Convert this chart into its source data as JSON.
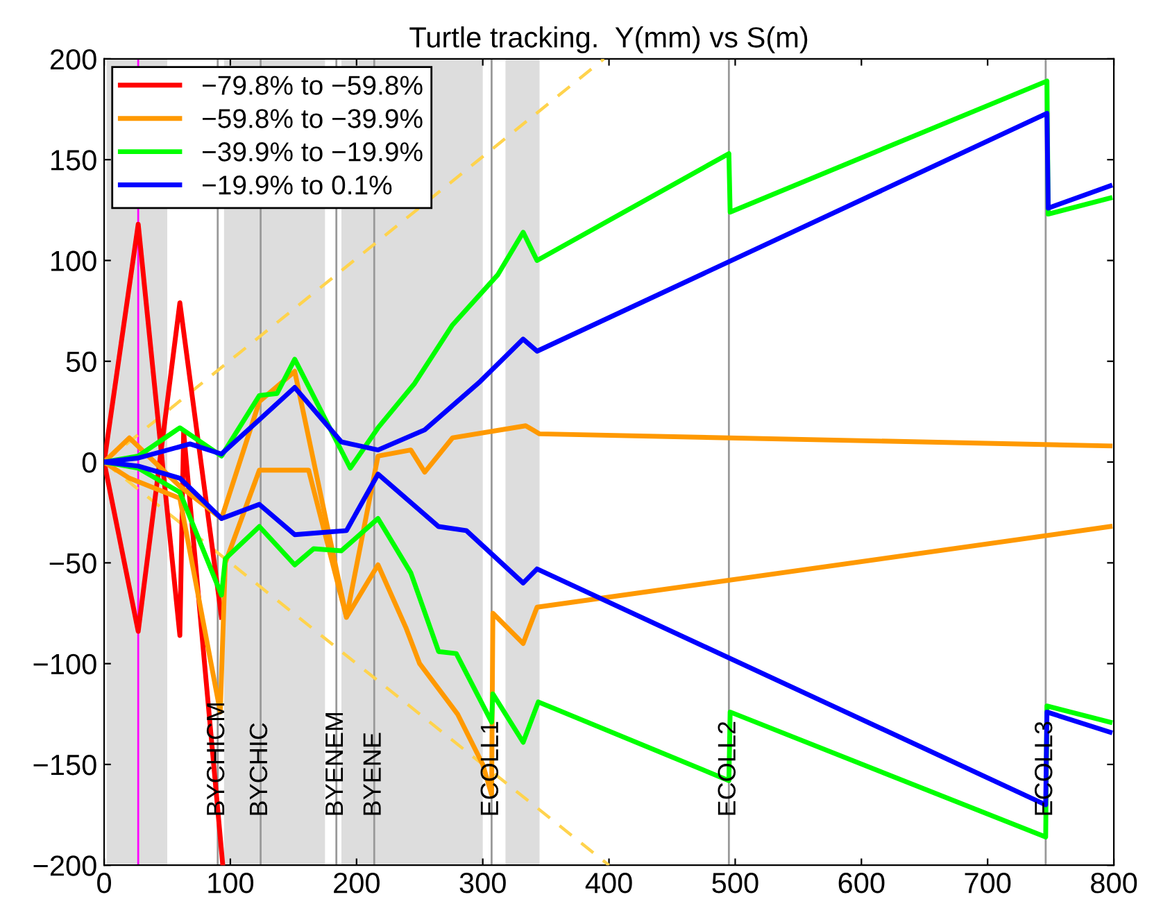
{
  "chart_data": {
    "type": "line",
    "title": "Turtle tracking.  Y(mm) vs S(m)",
    "xlim": [
      0,
      800
    ],
    "ylim": [
      -200,
      200
    ],
    "xticks": [
      0,
      100,
      200,
      300,
      400,
      500,
      600,
      700,
      800
    ],
    "yticks": [
      {
        "value": -200,
        "label": "−200"
      },
      {
        "value": -150,
        "label": "−150"
      },
      {
        "value": -100,
        "label": "−100"
      },
      {
        "value": -50,
        "label": "−50"
      },
      0,
      50,
      100,
      150,
      200
    ],
    "grid": false,
    "legend": "top left",
    "bands": [
      {
        "axis": "x",
        "from": 2,
        "to": 50,
        "color": "#dddddd"
      },
      {
        "axis": "x",
        "from": 95,
        "to": 175,
        "color": "#dddddd"
      },
      {
        "axis": "x",
        "from": 188,
        "to": 300,
        "color": "#dddddd"
      },
      {
        "axis": "x",
        "from": 318,
        "to": 345,
        "color": "#dddddd"
      }
    ],
    "ref_lines": [
      {
        "axis": "x",
        "value": 27,
        "color": "#ff00ff"
      },
      {
        "axis": "x",
        "value": 90,
        "label": "BYCHICM",
        "color": "#999999"
      },
      {
        "axis": "x",
        "value": 124,
        "label": "BYCHIC",
        "color": "#999999"
      },
      {
        "axis": "x",
        "value": 184,
        "label": "BYENEM",
        "color": "#999999"
      },
      {
        "axis": "x",
        "value": 214,
        "label": "BYENE",
        "color": "#999999"
      },
      {
        "axis": "x",
        "value": 307,
        "label": "ECOLL1",
        "color": "#999999"
      },
      {
        "axis": "x",
        "value": 495,
        "label": "ECOLL2",
        "color": "#999999"
      },
      {
        "axis": "x",
        "value": 746,
        "label": "ECOLL3",
        "color": "#999999"
      }
    ],
    "series": [
      {
        "color": "#ffd34d",
        "line_style": "dashed",
        "x": [
          0,
          396
        ],
        "values": [
          0,
          200
        ]
      },
      {
        "color": "#ffd34d",
        "line_style": "dashed",
        "x": [
          0,
          400
        ],
        "values": [
          0,
          -200
        ]
      },
      {
        "name": "−79.8% to −59.8%",
        "color": "#ff0000",
        "x": [
          93,
          60,
          27,
          0,
          27,
          60,
          63,
          94
        ],
        "values": [
          -77,
          79,
          -84,
          0,
          118,
          -86,
          15,
          -200
        ]
      },
      {
        "name": "−59.8% to −39.9%",
        "color": "#ff9900",
        "x": [
          0,
          20,
          60,
          93,
          123,
          151,
          192,
          217,
          243,
          254,
          276,
          334,
          345,
          797
        ],
        "values": [
          0,
          12,
          -12,
          -28,
          30,
          45,
          -77,
          3,
          6,
          -5,
          12,
          18,
          14,
          8
        ]
      },
      {
        "color": "#ff9900",
        "x": [
          0,
          20,
          60,
          92,
          96,
          123,
          162,
          192,
          217,
          239,
          250,
          280,
          300,
          307,
          308,
          332,
          343,
          797
        ],
        "values": [
          0,
          -8,
          -18,
          -124,
          -50,
          -4,
          -4,
          -77,
          -51,
          -82,
          -100,
          -125,
          -150,
          -165,
          -75,
          -90,
          -72,
          -32
        ]
      },
      {
        "name": "−39.9% to −19.9%",
        "color": "#00ff00",
        "x": [
          0,
          27,
          60,
          93,
          123,
          137,
          151,
          195,
          217,
          246,
          276,
          312,
          332,
          343,
          495,
          496,
          747,
          748,
          797
        ],
        "values": [
          0,
          3,
          17,
          3,
          33,
          34,
          51,
          -3,
          17,
          39,
          68,
          93,
          114,
          100,
          153,
          124,
          189,
          123,
          131
        ]
      },
      {
        "color": "#00ff00",
        "x": [
          0,
          27,
          60,
          93,
          96,
          123,
          151,
          166,
          188,
          217,
          243,
          265,
          279,
          307,
          308,
          332,
          344,
          495,
          496,
          746,
          747,
          797
        ],
        "values": [
          0,
          -3,
          -15,
          -66,
          -48,
          -32,
          -51,
          -43,
          -44,
          -28,
          -55,
          -94,
          -95,
          -129,
          -115,
          -139,
          -119,
          -158,
          -124,
          -186,
          -121,
          -129
        ]
      },
      {
        "name": "−19.9% to 0.1%",
        "color": "#0000ff",
        "x": [
          0,
          27,
          68,
          93,
          123,
          151,
          188,
          217,
          254,
          298,
          332,
          343,
          747,
          748,
          797
        ],
        "values": [
          0,
          2,
          9,
          4,
          21,
          37,
          10,
          6,
          16,
          40,
          61,
          55,
          173,
          126,
          137
        ]
      },
      {
        "color": "#0000ff",
        "x": [
          0,
          27,
          60,
          93,
          123,
          151,
          192,
          217,
          265,
          287,
          332,
          343,
          746,
          747,
          797
        ],
        "values": [
          0,
          -2,
          -8,
          -28,
          -21,
          -36,
          -34,
          -6,
          -32,
          -34,
          -60,
          -53,
          -170,
          -124,
          -134
        ]
      }
    ]
  }
}
